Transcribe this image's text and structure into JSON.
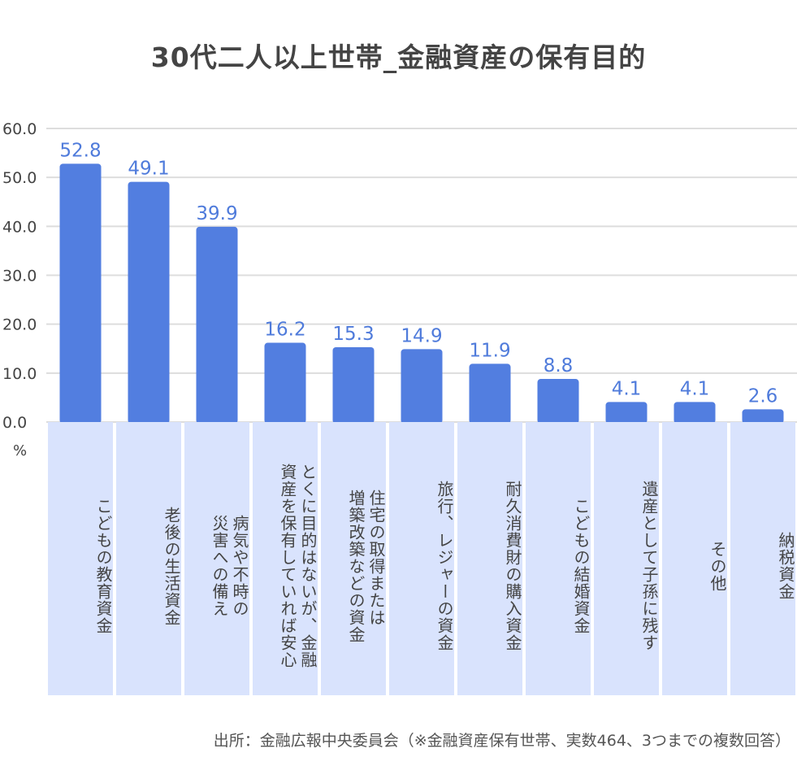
{
  "chart_data": {
    "type": "bar",
    "title": "30代二人以上世帯_金融資産の保有目的",
    "categories": [
      "こどもの教育資金",
      "老後の生活資金",
      "病気や不時の\n災害への備え",
      "とくに目的はないが、金融\n資産を保有していれば安心",
      "住宅の取得または\n増築改築などの資金",
      "旅行、レジャーの資金",
      "耐久消費財の購入資金",
      "こどもの結婚資金",
      "遺産として子孫に残す",
      "その他",
      "納税資金"
    ],
    "values": [
      52.8,
      49.1,
      39.9,
      16.2,
      15.3,
      14.9,
      11.9,
      8.8,
      4.1,
      4.1,
      2.6
    ],
    "value_labels": [
      "52.8",
      "49.1",
      "39.9",
      "16.2",
      "15.3",
      "14.9",
      "11.9",
      "8.8",
      "4.1",
      "4.1",
      "2.6"
    ],
    "ylim": [
      0,
      60
    ],
    "yticks": [
      "0.0",
      "10.0",
      "20.0",
      "30.0",
      "40.0",
      "50.0",
      "60.0"
    ],
    "ylabel": "%",
    "xlabel": "",
    "grid": true,
    "colors": {
      "bar": "#527ee0",
      "data_label": "#4f7bdb",
      "category_band": "#d9e3fd",
      "grid": "#dddddd"
    }
  },
  "source": "出所：金融広報中央委員会（※金融資産保有世帯、実数464、3つまでの複数回答）"
}
